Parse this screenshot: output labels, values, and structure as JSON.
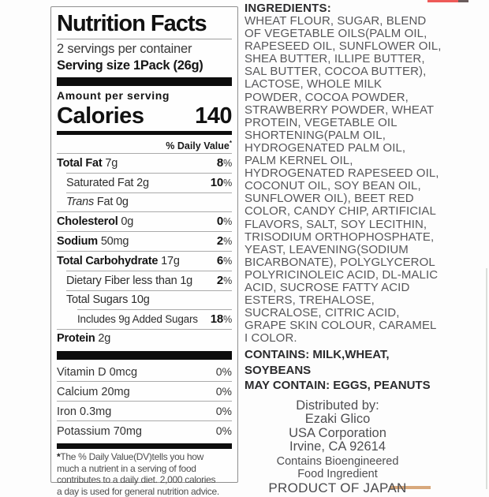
{
  "nutrition": {
    "title": "Nutrition Facts",
    "servings_per_container": "2 servings per container",
    "serving_size_label": "Serving size",
    "serving_size_value": "1Pack (26g)",
    "amount_per_serving": "Amount per serving",
    "calories_label": "Calories",
    "calories_value": "140",
    "daily_value_header": "% Daily Value",
    "daily_value_asterisk": "*",
    "rows": [
      {
        "name": "Total Fat",
        "amount": "7g",
        "dv": "8",
        "dv_sign": "%"
      },
      {
        "name": "Saturated Fat",
        "amount": "2g",
        "dv": "10",
        "dv_sign": "%"
      },
      {
        "name_italic": "Trans",
        "name": "Fat",
        "amount": "0g"
      },
      {
        "name": "Cholesterol",
        "amount": "0g",
        "dv": "0",
        "dv_sign": "%"
      },
      {
        "name": "Sodium",
        "amount": "50mg",
        "dv": "2",
        "dv_sign": "%"
      },
      {
        "name": "Total Carbohydrate",
        "amount": "17g",
        "dv": "6",
        "dv_sign": "%"
      },
      {
        "name": "Dietary Fiber",
        "amount": "less than 1g",
        "dv": "2",
        "dv_sign": "%"
      },
      {
        "name": "Total Sugars",
        "amount": "10g"
      },
      {
        "name": "Includes 9g Added Sugars",
        "amount": "",
        "dv": "18",
        "dv_sign": "%"
      },
      {
        "name": "Protein",
        "amount": "2g"
      }
    ],
    "vitamins": [
      {
        "name": "Vitamin D 0mcg",
        "value": "0",
        "sign": "%"
      },
      {
        "name": "Calcium 20mg",
        "value": "0",
        "sign": "%"
      },
      {
        "name": "Iron 0.3mg",
        "value": "0",
        "sign": "%"
      },
      {
        "name": "Potassium 70mg",
        "value": "0",
        "sign": "%"
      }
    ],
    "footnote_marker": "*",
    "footnote": "The % Daily Value(DV)tells you how\nmuch a nutrient in a serving of food\ncontributes to a daily diet. 2,000 calories\na day is used for general nutrition advice."
  },
  "ingredients": {
    "heading": "INGREDIENTS:",
    "lines_text": "WHEAT FLOUR, SUGAR, BLEND\nOF VEGETABLE OILS(PALM OIL,\nRAPESEED OIL, SUNFLOWER OIL,\nSHEA BUTTER, ILLIPE BUTTER,\nSAL BUTTER, COCOA BUTTER),\nLACTOSE, WHOLE MILK\nPOWDER, COCOA POWDER,\nSTRAWBERRY POWDER, WHEAT\nPROTEIN, VEGETABLE OIL\nSHORTENING(PALM OIL,\nHYDROGENATED PALM OIL,\nPALM KERNEL OIL,\nHYDROGENATED RAPESEED OIL,\nCOCONUT OIL, SOY BEAN OIL,\nSUNFLOWER OIL), BEET RED\nCOLOR, CANDY CHIP, ARTIFICIAL\nFLAVORS, SALT, SOY LECITHIN,\nTRISODIUM ORTHOPHOSPHATE,\nYEAST, LEAVENING(SODIUM\nBICARBONATE), POLYGLYCEROL\nPOLYRICINOLEIC ACID, DL-MALIC\nACID, SUCROSE FATTY ACID\nESTERS, TREHALOSE,\nSUCRALOSE, CITRIC ACID,\nGRAPE SKIN COLOUR, CARAMEL\nI COLOR.",
    "contains_text": "CONTAINS: MILK,WHEAT,\nSOYBEANS",
    "may_contain": "MAY CONTAIN: EGGS, PEANUTS"
  },
  "distribution": {
    "address_text": "Distributed by:\nEzaki Glico\nUSA Corporation\nIrvine, CA 92614",
    "bioengineered_text": "Contains Bioengineered\nFood Ingredient",
    "product_of": "PRODUCT OF JAPAN"
  },
  "decor": {
    "top_red_color": "#ee5a58",
    "top_red_dark_color": "#6a5c5c",
    "bottom_tan_color": "#d8a87c",
    "edge_line_color": "#dbdfdb"
  }
}
